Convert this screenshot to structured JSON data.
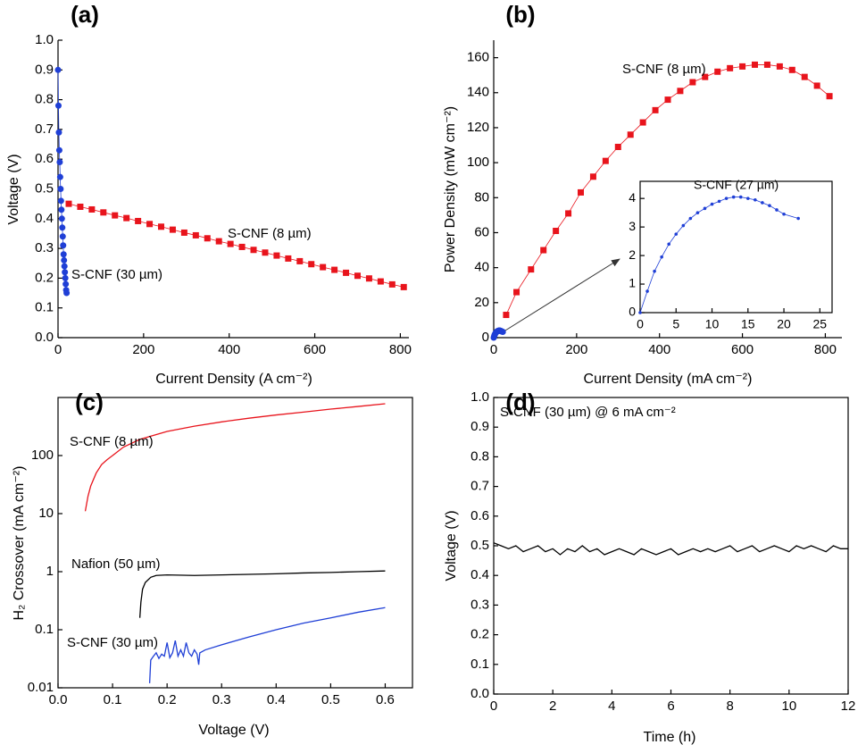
{
  "chart_data": [
    {
      "type": "line",
      "title": "(a)",
      "xlabel": "Current Density (A cm⁻²)",
      "ylabel": "Voltage (V)",
      "xlim": [
        0,
        820
      ],
      "ylim": [
        0,
        1.0
      ],
      "xticks": [
        0,
        200,
        400,
        600,
        800
      ],
      "yticks": [
        {
          "value": 0,
          "label": "0.0"
        },
        0.1,
        0.2,
        0.3,
        0.4,
        0.5,
        0.6,
        0.7,
        0.8,
        0.9,
        {
          "value": 1,
          "label": "1.0"
        }
      ],
      "series": [
        {
          "name": "S-CNF (8 µm)",
          "color": "#e8141c",
          "marker": "square",
          "x": [
            25,
            52,
            79,
            106,
            133,
            160,
            187,
            214,
            241,
            268,
            295,
            322,
            349,
            376,
            403,
            430,
            457,
            484,
            511,
            538,
            565,
            592,
            619,
            646,
            673,
            700,
            727,
            754,
            781,
            808
          ],
          "values": [
            0.45,
            0.44,
            0.431,
            0.421,
            0.411,
            0.402,
            0.392,
            0.382,
            0.373,
            0.363,
            0.353,
            0.344,
            0.334,
            0.324,
            0.315,
            0.305,
            0.295,
            0.286,
            0.276,
            0.266,
            0.257,
            0.247,
            0.237,
            0.228,
            0.218,
            0.208,
            0.199,
            0.189,
            0.179,
            0.17
          ]
        },
        {
          "name": "S-CNF (30 µm)",
          "color": "#1f3fd6",
          "marker": "circle",
          "x": [
            0,
            1,
            2,
            3,
            4,
            5,
            6,
            7,
            8,
            9,
            10,
            11,
            12,
            13,
            14,
            15,
            16,
            17,
            18,
            19,
            20
          ],
          "values": [
            0.9,
            0.78,
            0.69,
            0.63,
            0.59,
            0.54,
            0.5,
            0.46,
            0.43,
            0.4,
            0.37,
            0.34,
            0.31,
            0.28,
            0.26,
            0.24,
            0.22,
            0.2,
            0.18,
            0.16,
            0.15
          ]
        }
      ]
    },
    {
      "type": "line",
      "title": "(b)",
      "xlabel": "Current Density (mA cm⁻²)",
      "ylabel": "Power Density (mW cm⁻²)",
      "xlim": [
        0,
        840
      ],
      "ylim": [
        0,
        170
      ],
      "xticks": [
        0,
        200,
        400,
        600,
        800
      ],
      "yticks": [
        0,
        20,
        40,
        60,
        80,
        100,
        120,
        140,
        160
      ],
      "series": [
        {
          "name": "S-CNF (8 µm)",
          "color": "#e8141c",
          "marker": "square",
          "x": [
            30,
            55,
            90,
            120,
            150,
            180,
            210,
            240,
            270,
            300,
            330,
            360,
            390,
            420,
            450,
            480,
            510,
            540,
            570,
            600,
            630,
            660,
            690,
            720,
            750,
            780,
            810
          ],
          "values": [
            13,
            26,
            39,
            50,
            61,
            71,
            83,
            92,
            101,
            109,
            116,
            123,
            130,
            136,
            141,
            146,
            149,
            152,
            154,
            155,
            156,
            156,
            155,
            153,
            149,
            144,
            138
          ]
        }
      ]
    },
    {
      "type": "line",
      "xlim": [
        0,
        26.7
      ],
      "ylim": [
        0,
        4.6
      ],
      "xticks": [
        0,
        5,
        10,
        15,
        20,
        25
      ],
      "yticks": [
        0,
        1,
        2,
        3,
        4
      ],
      "series": [
        {
          "name": "S-CNF (27 µm)",
          "color": "#1f3fd6",
          "marker": "circle",
          "x": [
            0,
            1,
            2,
            3,
            4,
            5,
            6,
            7,
            8,
            9,
            10,
            11,
            12,
            13,
            14,
            15,
            16,
            17,
            18,
            19,
            20,
            22
          ],
          "values": [
            0,
            0.75,
            1.45,
            1.95,
            2.4,
            2.75,
            3.05,
            3.3,
            3.5,
            3.65,
            3.8,
            3.9,
            4.0,
            4.05,
            4.05,
            4.0,
            3.95,
            3.85,
            3.75,
            3.6,
            3.45,
            3.3
          ]
        }
      ]
    },
    {
      "type": "line",
      "title": "(c)",
      "xlabel": "Voltage (V)",
      "ylabel": "H₂ Crossover (mA cm⁻²)",
      "ylog": true,
      "xlim": [
        0,
        0.65
      ],
      "ylim": [
        0.01,
        1000
      ],
      "xticks": [
        {
          "value": 0,
          "label": "0.0"
        },
        0.1,
        0.2,
        0.3,
        0.4,
        0.5,
        0.6
      ],
      "yticks": [
        0.01,
        0.1,
        1,
        10,
        100
      ],
      "series": [
        {
          "name": "S-CNF (8 µm)",
          "color": "#e8141c",
          "x": [
            0.05,
            0.055,
            0.06,
            0.07,
            0.08,
            0.09,
            0.1,
            0.12,
            0.15,
            0.2,
            0.25,
            0.3,
            0.35,
            0.4,
            0.45,
            0.5,
            0.55,
            0.6
          ],
          "values": [
            11,
            20,
            30,
            50,
            70,
            85,
            100,
            140,
            190,
            260,
            320,
            380,
            440,
            500,
            560,
            630,
            700,
            780
          ]
        },
        {
          "name": "Nafion (50 µm)",
          "color": "#000000",
          "x": [
            0.15,
            0.152,
            0.155,
            0.16,
            0.17,
            0.18,
            0.2,
            0.25,
            0.3,
            0.35,
            0.4,
            0.45,
            0.5,
            0.55,
            0.6
          ],
          "values": [
            0.16,
            0.3,
            0.5,
            0.65,
            0.8,
            0.86,
            0.88,
            0.86,
            0.88,
            0.9,
            0.92,
            0.95,
            0.97,
            1.0,
            1.03
          ]
        },
        {
          "name": "S-CNF (30 µm)",
          "color": "#1f3fd6",
          "x": [
            0.168,
            0.17,
            0.175,
            0.18,
            0.185,
            0.19,
            0.195,
            0.2,
            0.205,
            0.21,
            0.215,
            0.22,
            0.225,
            0.23,
            0.235,
            0.24,
            0.245,
            0.25,
            0.255,
            0.258,
            0.26,
            0.27,
            0.3,
            0.35,
            0.4,
            0.45,
            0.5,
            0.55,
            0.6
          ],
          "values": [
            0.012,
            0.03,
            0.035,
            0.04,
            0.032,
            0.038,
            0.035,
            0.06,
            0.033,
            0.04,
            0.065,
            0.035,
            0.045,
            0.035,
            0.06,
            0.04,
            0.035,
            0.045,
            0.038,
            0.025,
            0.04,
            0.045,
            0.055,
            0.075,
            0.1,
            0.13,
            0.16,
            0.2,
            0.24
          ]
        }
      ]
    },
    {
      "type": "line",
      "title": "(d)",
      "xlabel": "Time (h)",
      "ylabel": "Voltage (V)",
      "annotation": "S-CNF (30 µm) @ 6 mA cm⁻²",
      "xlim": [
        0,
        12
      ],
      "ylim": [
        0,
        1.0
      ],
      "xticks": [
        0,
        2,
        4,
        6,
        8,
        10,
        12
      ],
      "yticks": [
        {
          "value": 0,
          "label": "0.0"
        },
        0.1,
        0.2,
        0.3,
        0.4,
        0.5,
        0.6,
        0.7,
        0.8,
        0.9,
        {
          "value": 1,
          "label": "1.0"
        }
      ],
      "series": [
        {
          "color": "#000000",
          "x": [
            0,
            0.25,
            0.5,
            0.75,
            1,
            1.25,
            1.5,
            1.75,
            2,
            2.25,
            2.5,
            2.75,
            3,
            3.25,
            3.5,
            3.75,
            4,
            4.25,
            4.5,
            4.75,
            5,
            5.25,
            5.5,
            5.75,
            6,
            6.25,
            6.5,
            6.75,
            7,
            7.25,
            7.5,
            7.75,
            8,
            8.25,
            8.5,
            8.75,
            9,
            9.25,
            9.5,
            9.75,
            10,
            10.25,
            10.5,
            10.75,
            11,
            11.25,
            11.5,
            11.75,
            12
          ],
          "values": [
            0.51,
            0.5,
            0.49,
            0.5,
            0.48,
            0.49,
            0.5,
            0.48,
            0.49,
            0.47,
            0.49,
            0.48,
            0.5,
            0.48,
            0.49,
            0.47,
            0.48,
            0.49,
            0.48,
            0.47,
            0.49,
            0.48,
            0.47,
            0.48,
            0.49,
            0.47,
            0.48,
            0.49,
            0.48,
            0.49,
            0.48,
            0.49,
            0.5,
            0.48,
            0.49,
            0.5,
            0.48,
            0.49,
            0.5,
            0.49,
            0.48,
            0.5,
            0.49,
            0.5,
            0.49,
            0.48,
            0.5,
            0.49,
            0.49
          ]
        }
      ]
    }
  ]
}
